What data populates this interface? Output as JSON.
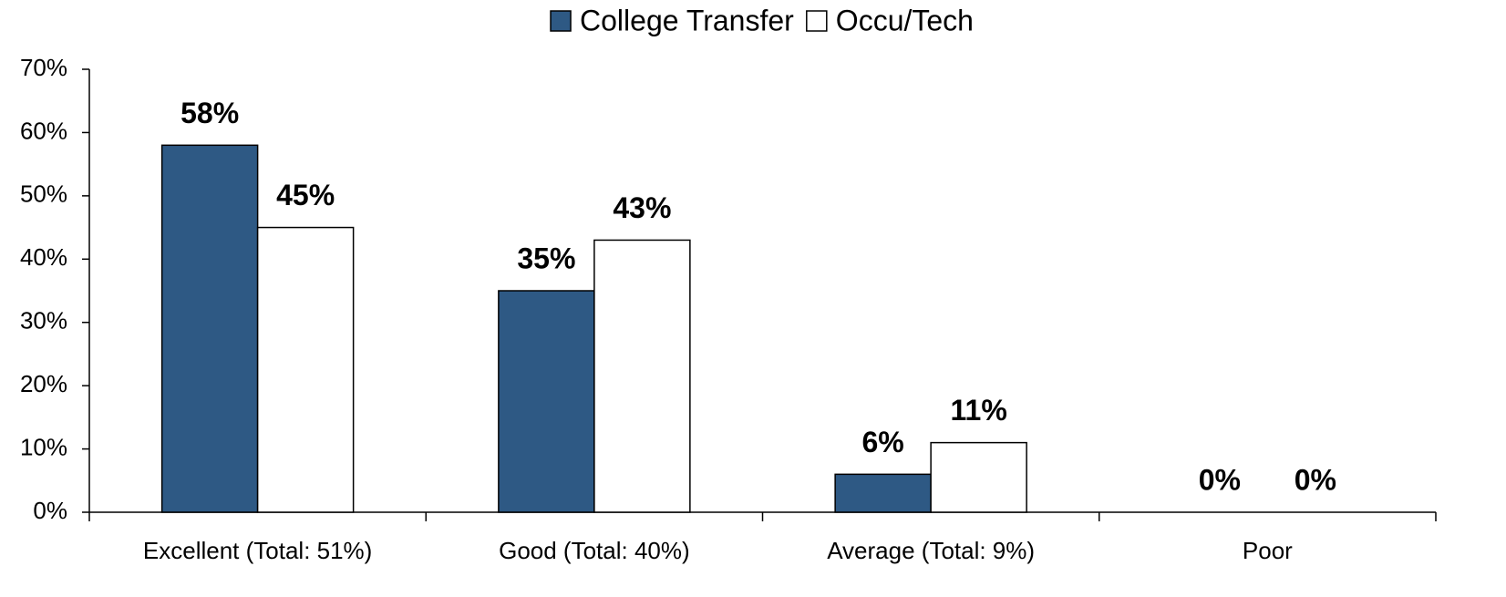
{
  "chart_data": {
    "type": "bar",
    "categories": [
      "Excellent (Total: 51%)",
      "Good (Total: 40%)",
      "Average (Total: 9%)",
      "Poor"
    ],
    "series": [
      {
        "name": "College Transfer",
        "color": "#2e5984",
        "values": [
          58,
          35,
          6,
          0
        ],
        "value_labels": [
          "58%",
          "35%",
          "6%",
          "0%"
        ]
      },
      {
        "name": "Occu/Tech",
        "color": "#ffffff",
        "values": [
          45,
          43,
          11,
          0
        ],
        "value_labels": [
          "45%",
          "43%",
          "11%",
          "0%"
        ]
      }
    ],
    "ylim": [
      0,
      70
    ],
    "yticks": [
      {
        "value": 0,
        "label": "0%"
      },
      {
        "value": 10,
        "label": "10%"
      },
      {
        "value": 20,
        "label": "20%"
      },
      {
        "value": 30,
        "label": "30%"
      },
      {
        "value": 40,
        "label": "40%"
      },
      {
        "value": 50,
        "label": "50%"
      },
      {
        "value": 60,
        "label": "60%"
      },
      {
        "value": 70,
        "label": "70%"
      }
    ],
    "legend": "top"
  }
}
